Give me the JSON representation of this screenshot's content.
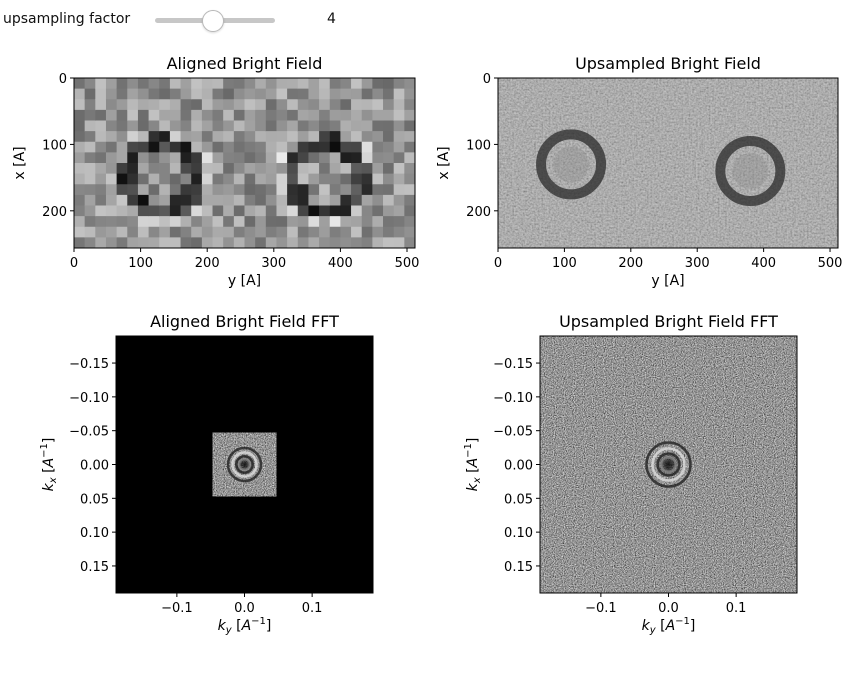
{
  "widget": {
    "label": "upsampling factor",
    "value": "4",
    "slider_fraction": 0.5
  },
  "colors": {
    "image_cmap": "gray",
    "frame": "#000000",
    "fft_background": "#000000"
  },
  "chart_data": [
    {
      "type": "heatmap",
      "title": "Aligned Bright Field",
      "xlabel": "y [A]",
      "ylabel": "x [A]",
      "xlim": [
        0,
        512
      ],
      "ylim": [
        256,
        0
      ],
      "xticks": [
        0,
        100,
        200,
        300,
        400,
        500
      ],
      "yticks": [
        0,
        100,
        200
      ],
      "xtick_labels": [
        "0",
        "100",
        "200",
        "300",
        "400",
        "500"
      ],
      "ytick_labels": [
        "0",
        "100",
        "200"
      ],
      "pixelated": true,
      "grid": false
    },
    {
      "type": "heatmap",
      "title": "Upsampled Bright Field",
      "xlabel": "y [A]",
      "ylabel": "x [A]",
      "xlim": [
        0,
        512
      ],
      "ylim": [
        256,
        0
      ],
      "xticks": [
        0,
        100,
        200,
        300,
        400,
        500
      ],
      "yticks": [
        0,
        100,
        200
      ],
      "xtick_labels": [
        "0",
        "100",
        "200",
        "300",
        "400",
        "500"
      ],
      "ytick_labels": [
        "0",
        "100",
        "200"
      ],
      "pixelated": false,
      "grid": false
    },
    {
      "type": "heatmap",
      "title": "Aligned Bright Field FFT",
      "xlabel": "k_y [A^-1]",
      "ylabel": "k_x [A^-1]",
      "xlim": [
        -0.19,
        0.19
      ],
      "ylim": [
        0.19,
        -0.19
      ],
      "xticks": [
        -0.1,
        0.0,
        0.1
      ],
      "yticks": [
        -0.15,
        -0.1,
        -0.05,
        0.0,
        0.05,
        0.1,
        0.15
      ],
      "xtick_labels": [
        "−0.1",
        "0.0",
        "0.1"
      ],
      "ytick_labels": [
        "−0.15",
        "−0.10",
        "−0.05",
        "0.00",
        "0.05",
        "0.10",
        "0.15"
      ],
      "data_extent": [
        -0.047,
        0.047
      ],
      "grid": false
    },
    {
      "type": "heatmap",
      "title": "Upsampled Bright Field FFT",
      "xlabel": "k_y [A^-1]",
      "ylabel": "k_x [A^-1]",
      "xlim": [
        -0.19,
        0.19
      ],
      "ylim": [
        0.19,
        -0.19
      ],
      "xticks": [
        -0.1,
        0.0,
        0.1
      ],
      "yticks": [
        -0.15,
        -0.1,
        -0.05,
        0.0,
        0.05,
        0.1,
        0.15
      ],
      "xtick_labels": [
        "−0.1",
        "0.0",
        "0.1"
      ],
      "ytick_labels": [
        "−0.15",
        "−0.10",
        "−0.05",
        "0.00",
        "0.05",
        "0.10",
        "0.15"
      ],
      "data_extent": [
        -0.19,
        0.19
      ],
      "grid": false
    }
  ]
}
